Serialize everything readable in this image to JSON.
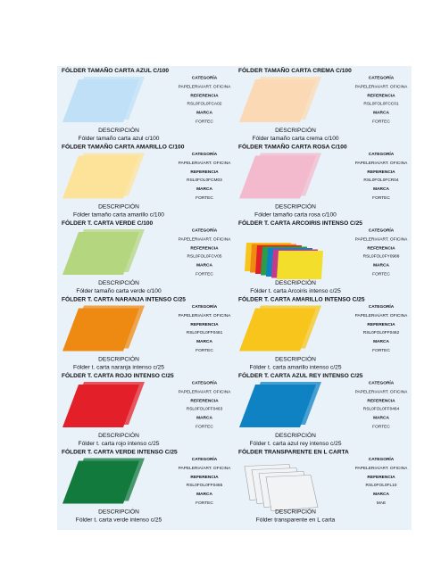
{
  "products": [
    {
      "title": "FÓLDER TAMAÑO CARTA AZUL C/100",
      "category_label": "CATEGORÍA",
      "category": "PAPELERIA/ART. OFICINA",
      "reference_label": "REFERENCIA",
      "reference": "RSL0FOL0FCA02",
      "brand_label": "MARCA",
      "brand": "FORTEC",
      "description_label": "DESCRIPCIÓN",
      "description": "Fólder tamaño carta azul c/100"
    },
    {
      "title": "FÓLDER TAMAÑO CARTA CREMA C/100",
      "category_label": "CATEGORÍA",
      "category": "PAPELERIA/ART. OFICINA",
      "reference_label": "REFERENCIA",
      "reference": "RSL0FOL0FCC01",
      "brand_label": "MARCA",
      "brand": "FORTEC",
      "description_label": "DESCRIPCIÓN",
      "description": "Fólder tamaño carta crema c/100"
    },
    {
      "title": "FÓLDER TAMAÑO CARTA AMARILLO C/100",
      "category_label": "CATEGORÍA",
      "category": "PAPELERIA/ART. OFICINA",
      "reference_label": "REFERENCIA",
      "reference": "RSL0FOL0FCM03",
      "brand_label": "MARCA",
      "brand": "FORTEC",
      "description_label": "DESCRIPCIÓN",
      "description": "Fólder tamaño carta amarillo c/100"
    },
    {
      "title": "FÓLDER TAMAÑO CARTA ROSA C/100",
      "category_label": "CATEGORÍA",
      "category": "PAPELERIA/ART. OFICINA",
      "reference_label": "REFERENCIA",
      "reference": "RSL0FOL0FCR04",
      "brand_label": "MARCA",
      "brand": "FORTEC",
      "description_label": "DESCRIPCIÓN",
      "description": "Fólder tamaño carta rosa c/100"
    },
    {
      "title": "FÓLDER T. CARTA VERDE C/100",
      "category_label": "CATEGORÍA",
      "category": "PAPELERIA/ART. OFICINA",
      "reference_label": "REFERENCIA",
      "reference": "RSL0FOL0FCV05",
      "brand_label": "MARCA",
      "brand": "FORTEC",
      "description_label": "DESCRIPCIÓN",
      "description": "Fólder tamaño carta verde c/100"
    },
    {
      "title": "FÓLDER T. CARTA ARCOIRIS INTENSO C/25",
      "category_label": "CATEGORÍA",
      "category": "PAPELERIA/ART. OFICINA",
      "reference_label": "REFERENCIA",
      "reference": "RSL0FOL0FY0988",
      "brand_label": "MARCA",
      "brand": "FORTEC",
      "description_label": "DESCRIPCIÓN",
      "description": "Fólder t. carta Arcoiris intenso c/25"
    },
    {
      "title": "FÓLDER T. CARTA NARANJA INTENSO C/25",
      "category_label": "CATEGORÍA",
      "category": "PAPELERIA/ART. OFICINA",
      "reference_label": "REFERENCIA",
      "reference": "RSL0FOL0FF0461",
      "brand_label": "MARCA",
      "brand": "FORTEC",
      "description_label": "DESCRIPCIÓN",
      "description": "Fólder t. carta naranja intenso c/25"
    },
    {
      "title": "FÓLDER T. CARTA AMARILLO INTENSO C/25",
      "category_label": "CATEGORÍA",
      "category": "PAPELERIA/ART. OFICINA",
      "reference_label": "REFERENCIA",
      "reference": "RSL0FOL0FF0462",
      "brand_label": "MARCA",
      "brand": "FORTEC",
      "description_label": "DESCRIPCIÓN",
      "description": "Fólder t. carta amarillo intenso c/25"
    },
    {
      "title": "FÓLDER T. CARTA ROJO INTENSO C/25",
      "category_label": "CATEGORÍA",
      "category": "PAPELERIA/ART. OFICINA",
      "reference_label": "REFERENCIA",
      "reference": "RSL0FOL0FF0463",
      "brand_label": "MARCA",
      "brand": "FORTEC",
      "description_label": "DESCRIPCIÓN",
      "description": "Fólder t. carta rojo intenso c/25"
    },
    {
      "title": "FÓLDER T. CARTA AZUL REY INTENSO C/25",
      "category_label": "CATEGORÍA",
      "category": "PAPELERIA/ART. OFICINA",
      "reference_label": "REFERENCIA",
      "reference": "RSL0FOL0FF0464",
      "brand_label": "MARCA",
      "brand": "FORTEC",
      "description_label": "DESCRIPCIÓN",
      "description": "Fólder t. carta azul rey intenso c/25"
    },
    {
      "title": "FÓLDER T. CARTA VERDE INTENSO C/25",
      "category_label": "CATEGORÍA",
      "category": "PAPELERIA/ART. OFICINA",
      "reference_label": "REFERENCIA",
      "reference": "RSL0FOL0FF0465",
      "brand_label": "MARCA",
      "brand": "FORTEC",
      "description_label": "DESCRIPCIÓN",
      "description": "Fólder t. carta verde intenso c/25"
    },
    {
      "title": "FÓLDER TRANSPARENTE EN L CARTA",
      "category_label": "CATEGORÍA",
      "category": "PAPELERIA/ART. OFICINA",
      "reference_label": "REFERENCIA",
      "reference": "RSL0FOL0FL10",
      "brand_label": "MARCA",
      "brand": "MAE",
      "description_label": "DESCRIPCIÓN",
      "description": "Fólder transparente en L carta"
    }
  ]
}
